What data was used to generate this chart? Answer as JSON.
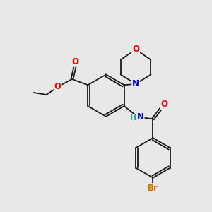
{
  "bg_color": "#e8e8e8",
  "bond_color": "#1a1a1a",
  "atom_colors": {
    "O": "#ff0000",
    "N": "#0000cc",
    "Br": "#cc7700",
    "H": "#2a9d8f",
    "C": "#1a1a1a"
  },
  "fig_w": 3.0,
  "fig_h": 3.0,
  "dpi": 100,
  "xlim": [
    0,
    10
  ],
  "ylim": [
    0,
    10
  ]
}
